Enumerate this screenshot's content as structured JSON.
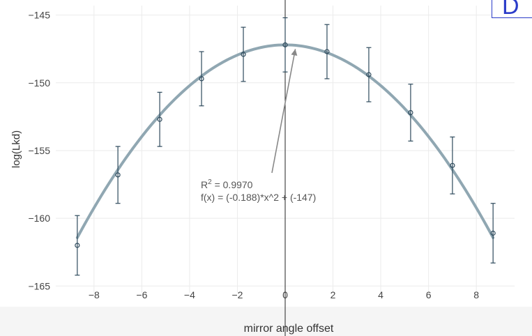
{
  "chart_data": {
    "type": "scatter",
    "xlabel": "mirror angle offset",
    "ylabel": "log(Lkd)",
    "xlim": [
      -9.6,
      9.6
    ],
    "ylim": [
      -165.5,
      -144.3
    ],
    "x_ticks": [
      -8,
      -6,
      -4,
      -2,
      0,
      2,
      4,
      6,
      8
    ],
    "y_ticks": [
      -165,
      -160,
      -155,
      -150,
      -145
    ],
    "grid": true,
    "series": [
      {
        "kind": "points_with_error_bars",
        "x": [
          -8.7,
          -7.0,
          -5.25,
          -3.5,
          -1.75,
          0.0,
          1.75,
          3.5,
          5.25,
          7.0,
          8.7
        ],
        "y": [
          -162.0,
          -156.8,
          -152.7,
          -149.7,
          -147.9,
          -147.2,
          -147.7,
          -149.4,
          -152.2,
          -156.1,
          -161.1
        ],
        "error": [
          2.2,
          2.1,
          2.0,
          2.0,
          2.0,
          2.0,
          2.0,
          2.0,
          2.1,
          2.1,
          2.2
        ],
        "color": "#2e4a5c"
      },
      {
        "kind": "fit_curve",
        "x_range": [
          -8.7,
          8.7
        ],
        "a": -0.188,
        "c": -147.2,
        "color": "#8aa2ae"
      }
    ],
    "annotation": {
      "r2_prefix": "R",
      "r2_sup": "2",
      "r2_value": " = 0.9970",
      "formula": "f(x) = (-0.188)*x^2 + (-147)",
      "arrow_target_x": 0.25,
      "arrow_target_y": -147.2,
      "arrow_color": "#888888"
    },
    "vertical_line_x": 0
  },
  "corner_label": "D"
}
